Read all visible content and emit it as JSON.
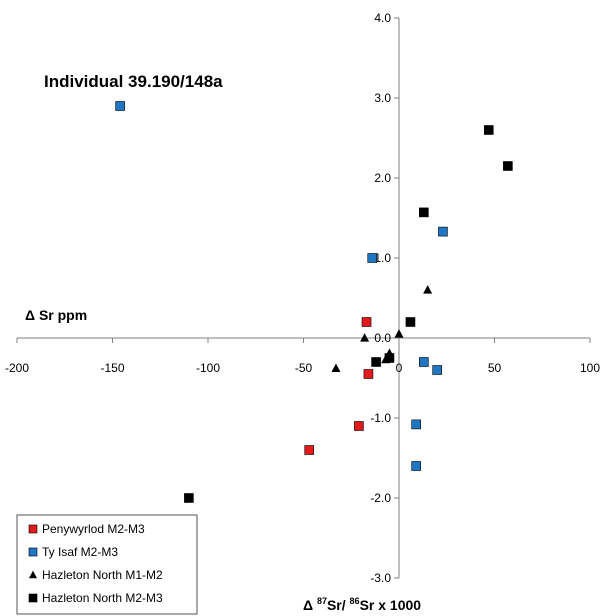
{
  "chart_data": {
    "type": "scatter",
    "xlabel_parts": [
      "Δ ",
      "87",
      "Sr/ ",
      "86",
      "Sr x 1000"
    ],
    "ylabel": "Δ Sr ppm",
    "annotation": "Individual 39.190/148a",
    "xlim": [
      -200,
      100
    ],
    "ylim": [
      -3.0,
      4.0
    ],
    "xticks": [
      "-200",
      "-150",
      "-100",
      "-50",
      "0",
      "50",
      "100"
    ],
    "yticks": [
      "4.0",
      "3.0",
      "2.0",
      "1.0",
      "0.0",
      "-1.0",
      "-2.0",
      "-3.0"
    ],
    "grid": false,
    "legend_position": "bottom-left",
    "series": [
      {
        "name": "Penywyrlod M2-M3",
        "marker": "square",
        "color": "#e31a1c",
        "points": [
          [
            -17,
            0.2
          ],
          [
            -16,
            -0.45
          ],
          [
            -21,
            -1.1
          ],
          [
            -47,
            -1.4
          ]
        ]
      },
      {
        "name": "Ty Isaf M2-M3",
        "marker": "square",
        "color": "#1f77c4",
        "points": [
          [
            -146,
            2.9
          ],
          [
            -14,
            1.0
          ],
          [
            23,
            1.33
          ],
          [
            13,
            -0.3
          ],
          [
            20,
            -0.4
          ],
          [
            9,
            -1.08
          ],
          [
            9,
            -1.6
          ]
        ]
      },
      {
        "name": "Hazleton North M1-M2",
        "marker": "triangle",
        "color": "#000000",
        "points": [
          [
            15,
            0.6
          ],
          [
            0,
            0.05
          ],
          [
            -18,
            0.0
          ],
          [
            -33,
            -0.38
          ],
          [
            -7,
            -0.27
          ],
          [
            -5,
            -0.19
          ]
        ]
      },
      {
        "name": "Hazleton North M2-M3",
        "marker": "square",
        "color": "#000000",
        "points": [
          [
            47,
            2.6
          ],
          [
            57,
            2.15
          ],
          [
            13,
            1.57
          ],
          [
            6,
            0.2
          ],
          [
            -5,
            -0.25
          ],
          [
            -12,
            -0.3
          ],
          [
            -110,
            -2.0
          ]
        ]
      }
    ]
  }
}
